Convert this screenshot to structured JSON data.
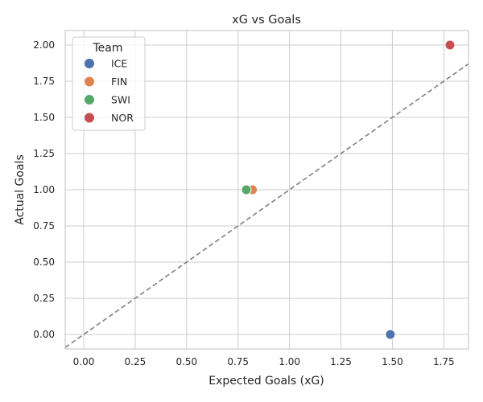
{
  "chart_data": {
    "type": "scatter",
    "title": "xG vs Goals",
    "xlabel": "Expected Goals (xG)",
    "ylabel": "Actual Goals",
    "xlim": [
      -0.09,
      1.87
    ],
    "ylim": [
      -0.1,
      2.1
    ],
    "x_ticks": [
      0.0,
      0.25,
      0.5,
      0.75,
      1.0,
      1.25,
      1.5,
      1.75
    ],
    "x_tick_labels": [
      "0.00",
      "0.25",
      "0.50",
      "0.75",
      "1.00",
      "1.25",
      "1.50",
      "1.75"
    ],
    "y_ticks": [
      0.0,
      0.25,
      0.5,
      0.75,
      1.0,
      1.25,
      1.5,
      1.75,
      2.0
    ],
    "y_tick_labels": [
      "0.00",
      "0.25",
      "0.50",
      "0.75",
      "1.00",
      "1.25",
      "1.50",
      "1.75",
      "2.00"
    ],
    "grid": true,
    "legend": {
      "title": "Team",
      "position": "top-left"
    },
    "reference_line": {
      "style": "dashed",
      "color": "#808080",
      "from": [
        -0.09,
        -0.09
      ],
      "to": [
        1.87,
        1.87
      ]
    },
    "series": [
      {
        "name": "ICE",
        "color": "#4c72b0",
        "points": [
          {
            "x": 1.49,
            "y": 0.0
          }
        ]
      },
      {
        "name": "FIN",
        "color": "#dd8452",
        "points": [
          {
            "x": 0.82,
            "y": 1.0
          }
        ]
      },
      {
        "name": "SWI",
        "color": "#55a868",
        "points": [
          {
            "x": 0.79,
            "y": 1.0
          }
        ]
      },
      {
        "name": "NOR",
        "color": "#c44e52",
        "points": [
          {
            "x": 1.78,
            "y": 2.0
          }
        ]
      }
    ]
  }
}
